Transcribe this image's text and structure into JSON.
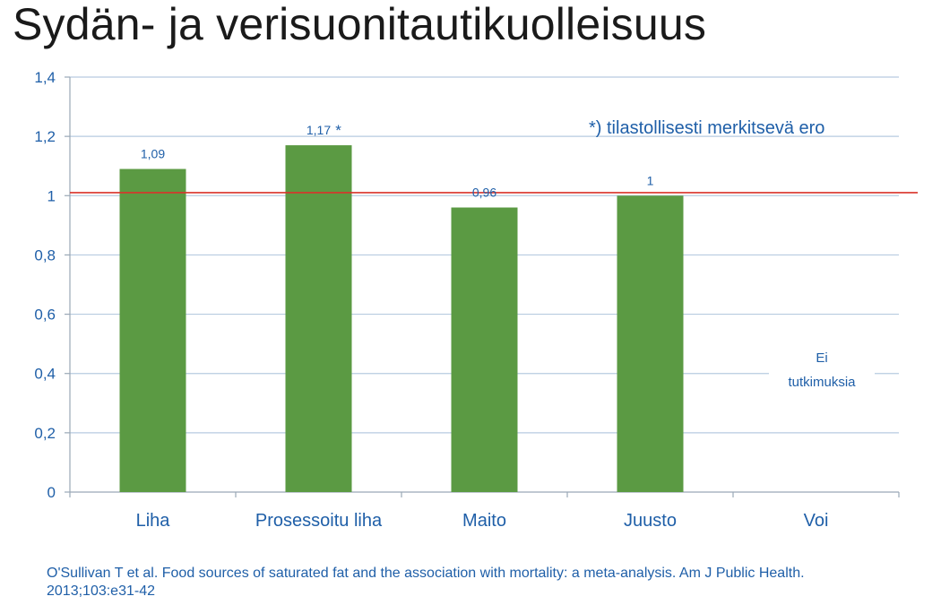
{
  "title": "Sydän- ja verisuonitautikuolleisuus",
  "chart_data": {
    "type": "bar",
    "categories": [
      "Liha",
      "Prosessoitu liha",
      "Maito",
      "Juusto",
      "Voi"
    ],
    "values": [
      1.09,
      1.17,
      0.96,
      1.0,
      null
    ],
    "data_labels": [
      "1,09",
      "1,17",
      "0,96",
      "1",
      ""
    ],
    "significance_marks": [
      "",
      "*",
      "",
      "",
      ""
    ],
    "ylim": [
      0,
      1.4
    ],
    "yticks": [
      0,
      0.2,
      0.4,
      0.6,
      0.8,
      1,
      1.2,
      1.4
    ],
    "ytick_labels": [
      "0",
      "0,2",
      "0,4",
      "0,6",
      "0,8",
      "1",
      "1,2",
      "1,4"
    ],
    "reference_line": 1.01,
    "grid": true,
    "bar_color": "#5b9a43",
    "reference_color": "#d9332a",
    "gridline_color": "#b7cbe0",
    "xlabel": "",
    "ylabel": ""
  },
  "annotations": {
    "significance_note": "*) tilastollisesti merkitsevä ero",
    "no_studies_line1": "Ei",
    "no_studies_line2": "tutkimuksia"
  },
  "citation": "O'Sullivan T et al. Food sources of saturated fat and the association with mortality: a meta-analysis. Am J Public Health. 2013;103:e31-42"
}
